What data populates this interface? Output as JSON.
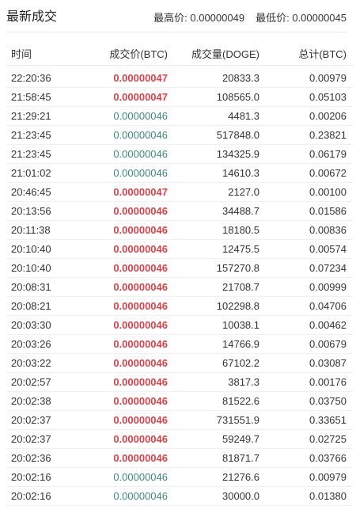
{
  "header": {
    "title": "最新成交",
    "high_label": "最高价:",
    "high_value": "0.00000049",
    "low_label": "最低价:",
    "low_value": "0.00000045"
  },
  "columns": {
    "time": "时间",
    "price": "成交价(BTC)",
    "amount": "成交量(DOGE)",
    "total": "总计(BTC)"
  },
  "colors": {
    "sell": "#d9434b",
    "buy": "#3f8a78"
  },
  "trades": [
    {
      "time": "22:20:36",
      "price": "0.00000047",
      "amount": "20833.3",
      "total": "0.00979",
      "side": "sell"
    },
    {
      "time": "21:58:45",
      "price": "0.00000047",
      "amount": "108565.0",
      "total": "0.05103",
      "side": "sell"
    },
    {
      "time": "21:29:21",
      "price": "0.00000046",
      "amount": "4481.3",
      "total": "0.00206",
      "side": "buy"
    },
    {
      "time": "21:23:45",
      "price": "0.00000046",
      "amount": "517848.0",
      "total": "0.23821",
      "side": "buy"
    },
    {
      "time": "21:23:45",
      "price": "0.00000046",
      "amount": "134325.9",
      "total": "0.06179",
      "side": "buy"
    },
    {
      "time": "21:01:02",
      "price": "0.00000046",
      "amount": "14610.3",
      "total": "0.00672",
      "side": "buy"
    },
    {
      "time": "20:46:45",
      "price": "0.00000047",
      "amount": "2127.0",
      "total": "0.00100",
      "side": "sell"
    },
    {
      "time": "20:13:56",
      "price": "0.00000046",
      "amount": "34488.7",
      "total": "0.01586",
      "side": "sell"
    },
    {
      "time": "20:11:38",
      "price": "0.00000046",
      "amount": "18180.5",
      "total": "0.00836",
      "side": "sell"
    },
    {
      "time": "20:10:40",
      "price": "0.00000046",
      "amount": "12475.5",
      "total": "0.00574",
      "side": "sell"
    },
    {
      "time": "20:10:40",
      "price": "0.00000046",
      "amount": "157270.8",
      "total": "0.07234",
      "side": "sell"
    },
    {
      "time": "20:08:31",
      "price": "0.00000046",
      "amount": "21708.7",
      "total": "0.00999",
      "side": "sell"
    },
    {
      "time": "20:08:21",
      "price": "0.00000046",
      "amount": "102298.8",
      "total": "0.04706",
      "side": "sell"
    },
    {
      "time": "20:03:30",
      "price": "0.00000046",
      "amount": "10038.1",
      "total": "0.00462",
      "side": "sell"
    },
    {
      "time": "20:03:26",
      "price": "0.00000046",
      "amount": "14766.9",
      "total": "0.00679",
      "side": "sell"
    },
    {
      "time": "20:03:22",
      "price": "0.00000046",
      "amount": "67102.2",
      "total": "0.03087",
      "side": "sell"
    },
    {
      "time": "20:02:57",
      "price": "0.00000046",
      "amount": "3817.3",
      "total": "0.00176",
      "side": "sell"
    },
    {
      "time": "20:02:38",
      "price": "0.00000046",
      "amount": "81522.6",
      "total": "0.03750",
      "side": "sell"
    },
    {
      "time": "20:02:37",
      "price": "0.00000046",
      "amount": "731551.9",
      "total": "0.33651",
      "side": "sell"
    },
    {
      "time": "20:02:37",
      "price": "0.00000046",
      "amount": "59249.7",
      "total": "0.02725",
      "side": "sell"
    },
    {
      "time": "20:02:36",
      "price": "0.00000046",
      "amount": "81871.7",
      "total": "0.03766",
      "side": "sell"
    },
    {
      "time": "20:02:16",
      "price": "0.00000046",
      "amount": "21276.6",
      "total": "0.00979",
      "side": "buy"
    },
    {
      "time": "20:02:16",
      "price": "0.00000046",
      "amount": "30000.0",
      "total": "0.01380",
      "side": "buy"
    }
  ]
}
